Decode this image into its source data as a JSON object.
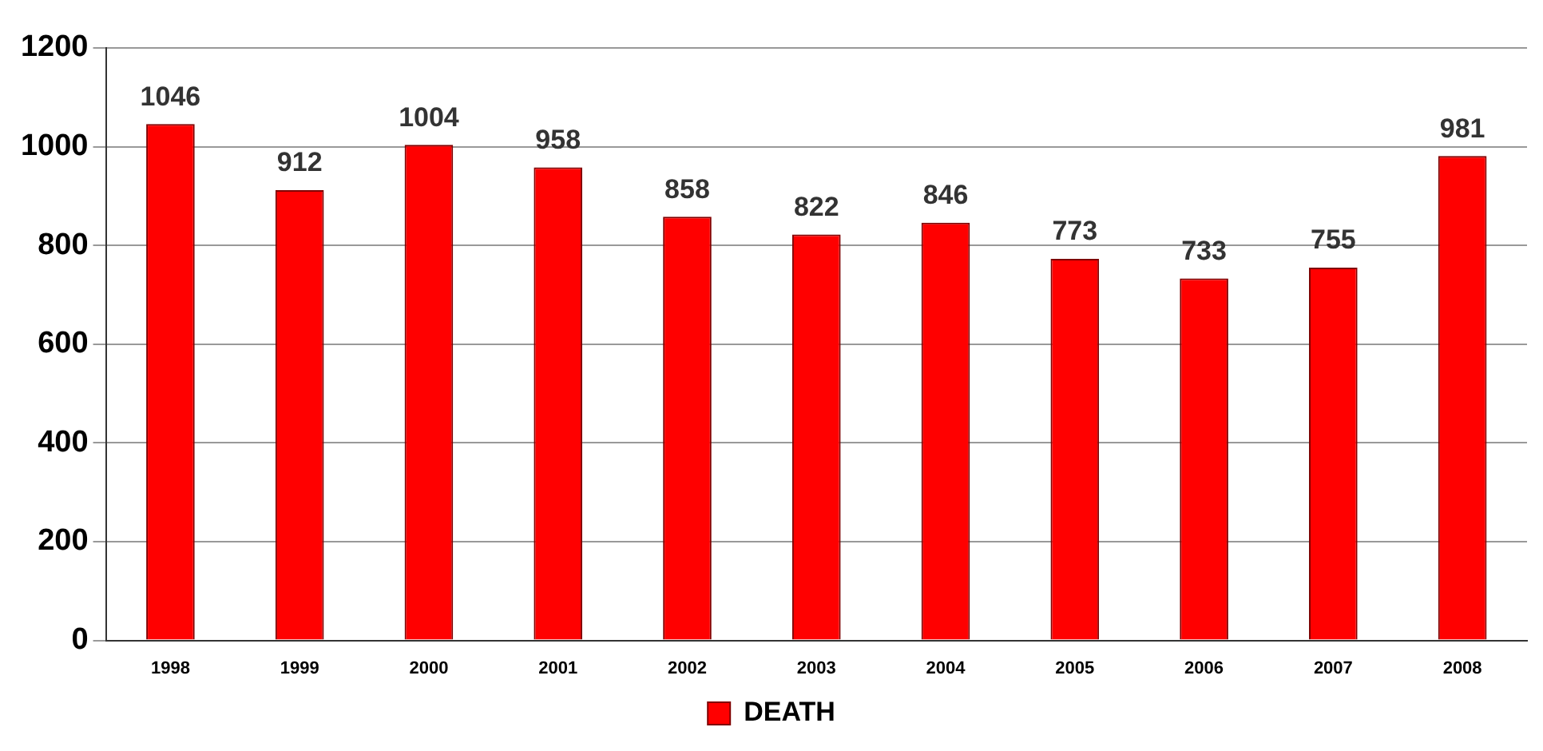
{
  "chart_data": {
    "type": "bar",
    "categories": [
      "1998",
      "1999",
      "2000",
      "2001",
      "2002",
      "2003",
      "2004",
      "2005",
      "2006",
      "2007",
      "2008"
    ],
    "series": [
      {
        "name": "DEATH",
        "color": "#ff0000",
        "values": [
          1046,
          912,
          1004,
          958,
          858,
          822,
          846,
          773,
          733,
          755,
          981
        ]
      }
    ],
    "ylim": [
      0,
      1200
    ],
    "yticks": [
      0,
      200,
      400,
      600,
      800,
      1000,
      1200
    ],
    "grid": "y",
    "legend": "bottom",
    "data_labels": true
  }
}
